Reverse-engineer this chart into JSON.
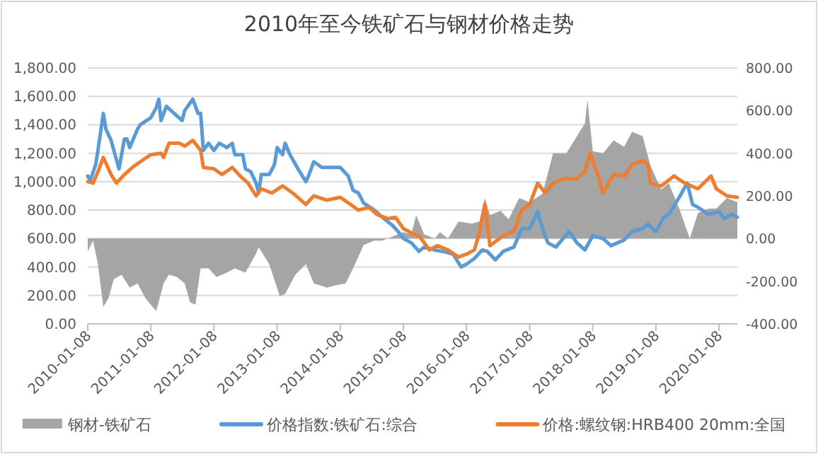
{
  "chart_data": {
    "type": "line",
    "title": "2010年至今铁矿石与钢材价格走势",
    "xlim": [
      "2010-01-08",
      "2020-04-23"
    ],
    "xticks": [
      "2010-01-08",
      "2011-01-08",
      "2012-01-08",
      "2013-01-08",
      "2014-01-08",
      "2015-01-08",
      "2016-01-08",
      "2017-01-08",
      "2018-01-08",
      "2019-01-08",
      "2020-01-08"
    ],
    "ylim": [
      0,
      1800
    ],
    "yticks": [
      {
        "value": 0,
        "label": "0.00"
      },
      {
        "value": 200,
        "label": "200.00"
      },
      {
        "value": 400,
        "label": "400.00"
      },
      {
        "value": 600,
        "label": "600.00"
      },
      {
        "value": 800,
        "label": "800.00"
      },
      {
        "value": 1000,
        "label": "1,000.00"
      },
      {
        "value": 1200,
        "label": "1,200.00"
      },
      {
        "value": 1400,
        "label": "1,400.00"
      },
      {
        "value": 1600,
        "label": "1,600.00"
      },
      {
        "value": 1800,
        "label": "1,800.00"
      }
    ],
    "y2lim": [
      -400,
      800
    ],
    "y2ticks": [
      {
        "value": -400,
        "label": "-400.00"
      },
      {
        "value": -200,
        "label": "-200.00"
      },
      {
        "value": 0,
        "label": "0.00"
      },
      {
        "value": 200,
        "label": "200.00"
      },
      {
        "value": 400,
        "label": "400.00"
      },
      {
        "value": 600,
        "label": "600.00"
      },
      {
        "value": 800,
        "label": "800.00"
      }
    ],
    "grid": "y",
    "legend": "bottom",
    "series": [
      {
        "name": "钢材-铁矿石",
        "type": "area",
        "axis": "y2",
        "color": "#a5a5a5",
        "x": [
          "2010-01-08",
          "2010-02-08",
          "2010-03-08",
          "2010-04-08",
          "2010-05-08",
          "2010-06-08",
          "2010-07-23",
          "2010-09-08",
          "2010-10-23",
          "2010-12-08",
          "2011-02-08",
          "2011-03-23",
          "2011-04-23",
          "2011-06-08",
          "2011-07-23",
          "2011-08-23",
          "2011-09-23",
          "2011-10-23",
          "2011-12-08",
          "2012-01-23",
          "2012-03-23",
          "2012-05-08",
          "2012-07-08",
          "2012-09-08",
          "2012-09-23",
          "2012-11-23",
          "2013-01-23",
          "2013-02-23",
          "2013-04-23",
          "2013-06-23",
          "2013-08-08",
          "2013-10-23",
          "2013-12-08",
          "2014-02-08",
          "2014-03-23",
          "2014-05-23",
          "2014-07-23",
          "2014-09-08",
          "2014-11-08",
          "2015-01-08",
          "2015-02-23",
          "2015-03-23",
          "2015-05-08",
          "2015-07-08",
          "2015-08-08",
          "2015-09-23",
          "2015-11-23",
          "2016-02-08",
          "2016-03-23",
          "2016-04-23",
          "2016-05-23",
          "2016-07-23",
          "2016-09-08",
          "2016-11-08",
          "2017-01-08",
          "2017-03-23",
          "2017-05-23",
          "2017-08-08",
          "2017-10-08",
          "2017-11-23",
          "2017-12-08",
          "2018-01-08",
          "2018-03-08",
          "2018-05-08",
          "2018-07-08",
          "2018-08-23",
          "2018-10-23",
          "2018-12-08",
          "2019-02-08",
          "2019-03-23",
          "2019-05-23",
          "2019-07-23",
          "2019-09-08",
          "2019-11-08",
          "2019-12-23",
          "2020-02-23",
          "2020-04-23"
        ],
        "values": [
          -60,
          -10,
          -120,
          -320,
          -280,
          -190,
          -170,
          -230,
          -210,
          -280,
          -340,
          -210,
          -170,
          -180,
          -210,
          -300,
          -310,
          -140,
          -140,
          -180,
          -160,
          -140,
          -160,
          -70,
          -40,
          -120,
          -270,
          -260,
          -170,
          -120,
          -210,
          -230,
          -220,
          -210,
          -140,
          -30,
          -10,
          -10,
          10,
          30,
          20,
          110,
          20,
          0,
          30,
          0,
          80,
          70,
          80,
          190,
          110,
          130,
          90,
          190,
          170,
          210,
          400,
          400,
          480,
          540,
          650,
          410,
          400,
          460,
          430,
          500,
          480,
          340,
          230,
          260,
          140,
          0,
          120,
          140,
          140,
          190,
          170
        ]
      },
      {
        "name": "价格指数:铁矿石:综合",
        "color": "#5b9bd5",
        "x": [
          "2010-01-08",
          "2010-01-23",
          "2010-02-23",
          "2010-03-08",
          "2010-04-08",
          "2010-04-23",
          "2010-05-23",
          "2010-06-08",
          "2010-07-08",
          "2010-08-08",
          "2010-08-23",
          "2010-09-08",
          "2010-10-23",
          "2010-11-08",
          "2011-01-08",
          "2011-02-08",
          "2011-02-23",
          "2011-03-08",
          "2011-04-08",
          "2011-05-23",
          "2011-07-08",
          "2011-07-23",
          "2011-09-08",
          "2011-10-08",
          "2011-10-23",
          "2011-11-08",
          "2011-12-08",
          "2012-01-08",
          "2012-02-08",
          "2012-03-23",
          "2012-04-23",
          "2012-05-08",
          "2012-06-23",
          "2012-07-08",
          "2012-08-08",
          "2012-09-08",
          "2012-09-23",
          "2012-10-08",
          "2012-11-23",
          "2012-12-23",
          "2013-01-08",
          "2013-02-08",
          "2013-02-23",
          "2013-03-23",
          "2013-05-08",
          "2013-06-23",
          "2013-07-08",
          "2013-08-08",
          "2013-09-23",
          "2013-11-08",
          "2014-01-08",
          "2014-02-23",
          "2014-03-23",
          "2014-04-23",
          "2014-05-23",
          "2014-07-23",
          "2014-09-08",
          "2014-11-08",
          "2014-12-08",
          "2015-01-08",
          "2015-02-23",
          "2015-04-08",
          "2015-05-08",
          "2015-07-08",
          "2015-08-23",
          "2015-10-23",
          "2015-12-08",
          "2016-01-08",
          "2016-02-23",
          "2016-04-08",
          "2016-05-08",
          "2016-06-23",
          "2016-08-08",
          "2016-10-08",
          "2016-11-23",
          "2017-01-08",
          "2017-02-23",
          "2017-03-23",
          "2017-04-23",
          "2017-06-08",
          "2017-08-23",
          "2017-10-08",
          "2017-11-23",
          "2018-01-08",
          "2018-03-08",
          "2018-04-23",
          "2018-07-08",
          "2018-08-23",
          "2018-10-23",
          "2018-11-23",
          "2019-01-08",
          "2019-02-23",
          "2019-03-23",
          "2019-05-23",
          "2019-07-08",
          "2019-08-08",
          "2019-09-08",
          "2019-11-08",
          "2020-01-08",
          "2020-02-08",
          "2020-03-23",
          "2020-04-23"
        ],
        "values": [
          1040,
          1010,
          1120,
          1220,
          1480,
          1370,
          1290,
          1220,
          1090,
          1300,
          1300,
          1240,
          1370,
          1400,
          1450,
          1520,
          1580,
          1430,
          1530,
          1480,
          1430,
          1500,
          1580,
          1480,
          1480,
          1220,
          1270,
          1220,
          1270,
          1240,
          1270,
          1190,
          1190,
          1090,
          1070,
          990,
          920,
          1050,
          1050,
          1120,
          1240,
          1190,
          1270,
          1190,
          1090,
          1000,
          1040,
          1140,
          1100,
          1100,
          1100,
          1040,
          940,
          920,
          850,
          800,
          750,
          690,
          650,
          600,
          570,
          510,
          540,
          520,
          510,
          490,
          400,
          420,
          460,
          520,
          510,
          450,
          510,
          540,
          670,
          670,
          790,
          670,
          570,
          540,
          650,
          570,
          520,
          620,
          600,
          550,
          590,
          650,
          670,
          700,
          650,
          750,
          770,
          890,
          990,
          840,
          820,
          770,
          790,
          740,
          770,
          750
        ]
      },
      {
        "name": "价格:螺纹钢:HRB400 20mm:全国",
        "color": "#ed7d31",
        "x": [
          "2010-01-08",
          "2010-02-08",
          "2010-03-08",
          "2010-04-08",
          "2010-05-23",
          "2010-06-23",
          "2010-08-08",
          "2010-09-23",
          "2010-11-08",
          "2011-01-08",
          "2011-03-08",
          "2011-03-23",
          "2011-04-23",
          "2011-06-23",
          "2011-07-23",
          "2011-09-08",
          "2011-10-23",
          "2011-11-08",
          "2012-01-08",
          "2012-02-23",
          "2012-04-23",
          "2012-06-08",
          "2012-07-23",
          "2012-09-08",
          "2012-10-08",
          "2012-12-08",
          "2013-02-08",
          "2013-04-08",
          "2013-06-23",
          "2013-08-08",
          "2013-10-23",
          "2014-01-08",
          "2014-03-08",
          "2014-04-23",
          "2014-06-23",
          "2014-08-08",
          "2014-10-08",
          "2014-11-23",
          "2015-01-08",
          "2015-02-23",
          "2015-04-08",
          "2015-06-08",
          "2015-07-23",
          "2015-09-23",
          "2015-11-23",
          "2016-01-08",
          "2016-02-23",
          "2016-03-23",
          "2016-04-23",
          "2016-05-23",
          "2016-08-08",
          "2016-10-08",
          "2016-11-23",
          "2017-01-08",
          "2017-02-23",
          "2017-04-08",
          "2017-05-23",
          "2017-07-23",
          "2017-10-08",
          "2017-11-23",
          "2017-12-23",
          "2018-02-08",
          "2018-03-08",
          "2018-05-08",
          "2018-07-08",
          "2018-08-23",
          "2018-10-23",
          "2018-11-23",
          "2018-12-08",
          "2019-02-08",
          "2019-04-23",
          "2019-06-23",
          "2019-09-08",
          "2019-11-23",
          "2019-12-23",
          "2020-02-23",
          "2020-04-23"
        ],
        "values": [
          1000,
          990,
          1070,
          1170,
          1050,
          990,
          1050,
          1100,
          1140,
          1190,
          1200,
          1170,
          1270,
          1270,
          1250,
          1290,
          1220,
          1100,
          1090,
          1050,
          1100,
          1040,
          990,
          900,
          950,
          920,
          970,
          920,
          840,
          900,
          870,
          890,
          840,
          800,
          820,
          770,
          740,
          750,
          670,
          640,
          620,
          520,
          550,
          520,
          470,
          490,
          520,
          640,
          840,
          550,
          620,
          650,
          800,
          840,
          990,
          920,
          990,
          1020,
          1020,
          1070,
          1200,
          1040,
          920,
          1050,
          1040,
          1120,
          1150,
          1120,
          990,
          970,
          1040,
          990,
          950,
          1040,
          950,
          900,
          890
        ]
      }
    ]
  }
}
